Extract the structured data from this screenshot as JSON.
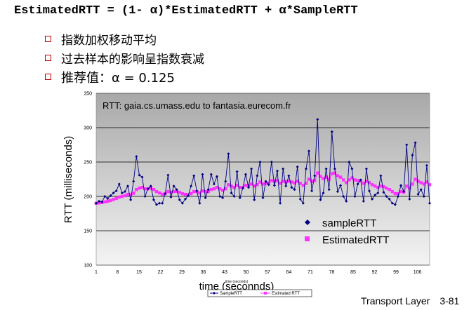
{
  "formula": "EstimatedRTT = (1- α)*EstimatedRTT + α*SampleRTT",
  "bullets": [
    "指数加权移动平均",
    "过去样本的影响呈指数衰减",
    "推荐值：α = 0.125"
  ],
  "footer": {
    "label": "Transport Layer",
    "page": "3-81"
  },
  "colors": {
    "sample": "#000080",
    "estimated": "#ff33ff",
    "bullet": "#c00000"
  },
  "chart_data": {
    "type": "line",
    "annotation": "RTT: gaia.cs.umass.edu to fantasia.eurecom.fr",
    "xlabel": "time (seconnds)",
    "xlabel_small": "time (seconds)",
    "ylabel": "RTT (milliseconds)",
    "xlim": [
      1,
      110
    ],
    "ylim": [
      100,
      350
    ],
    "x_ticks": [
      1,
      8,
      15,
      22,
      29,
      36,
      43,
      50,
      57,
      64,
      71,
      78,
      85,
      92,
      99,
      106
    ],
    "y_ticks": [
      100,
      150,
      200,
      250,
      300,
      350
    ],
    "legend": [
      "sampleRTT",
      "EstimatedRTT"
    ],
    "legend_bottom": [
      "SampleRTT",
      "Estimated RTT"
    ],
    "series": [
      {
        "name": "sampleRTT",
        "marker": "diamond",
        "values": [
          190,
          193,
          192,
          200,
          197,
          201,
          205,
          208,
          218,
          205,
          207,
          215,
          195,
          222,
          258,
          231,
          228,
          200,
          211,
          215,
          195,
          188,
          190,
          190,
          204,
          231,
          199,
          215,
          210,
          195,
          190,
          196,
          201,
          215,
          230,
          208,
          190,
          232,
          198,
          210,
          232,
          218,
          229,
          200,
          198,
          222,
          262,
          205,
          200,
          236,
          198,
          212,
          232,
          213,
          240,
          195,
          230,
          250,
          198,
          222,
          217,
          250,
          216,
          237,
          190,
          240,
          215,
          230,
          213,
          210,
          243,
          196,
          190,
          240,
          266,
          208,
          230,
          312,
          195,
          205,
          240,
          210,
          294,
          240,
          207,
          216,
          200,
          193,
          250,
          240,
          200,
          218,
          224,
          193,
          240,
          208,
          196,
          202,
          205,
          230,
          206,
          200,
          196,
          190,
          188,
          200,
          216,
          207,
          275,
          196,
          260,
          278,
          203,
          210,
          200,
          245,
          190
        ]
      },
      {
        "name": "EstimatedRTT",
        "marker": "square",
        "values": [
          190,
          190.5,
          191,
          192,
          193,
          194,
          195.5,
          197,
          199,
          200,
          201,
          203,
          202,
          204.5,
          210,
          212,
          213,
          211,
          211,
          212,
          210,
          207,
          205,
          203,
          204,
          207,
          206,
          207,
          207.5,
          206,
          204,
          203,
          202.5,
          204,
          207,
          207,
          205,
          208,
          207,
          207,
          210,
          211,
          213,
          211,
          209,
          211,
          217,
          215,
          213,
          216,
          213,
          213,
          216,
          216,
          218,
          215,
          217,
          221,
          218,
          219,
          219,
          223,
          222,
          223,
          219,
          222,
          221,
          222,
          221,
          219.5,
          222,
          219,
          216,
          219,
          225,
          222,
          223,
          234,
          229,
          226,
          228,
          225,
          233,
          234,
          230,
          228,
          224,
          220,
          224,
          227,
          224,
          223,
          223,
          219,
          222,
          220,
          217,
          215,
          213,
          215,
          214,
          212,
          210,
          207,
          204,
          204,
          207,
          206,
          215,
          212,
          218,
          225,
          222,
          220,
          218,
          221,
          217
        ]
      }
    ]
  }
}
